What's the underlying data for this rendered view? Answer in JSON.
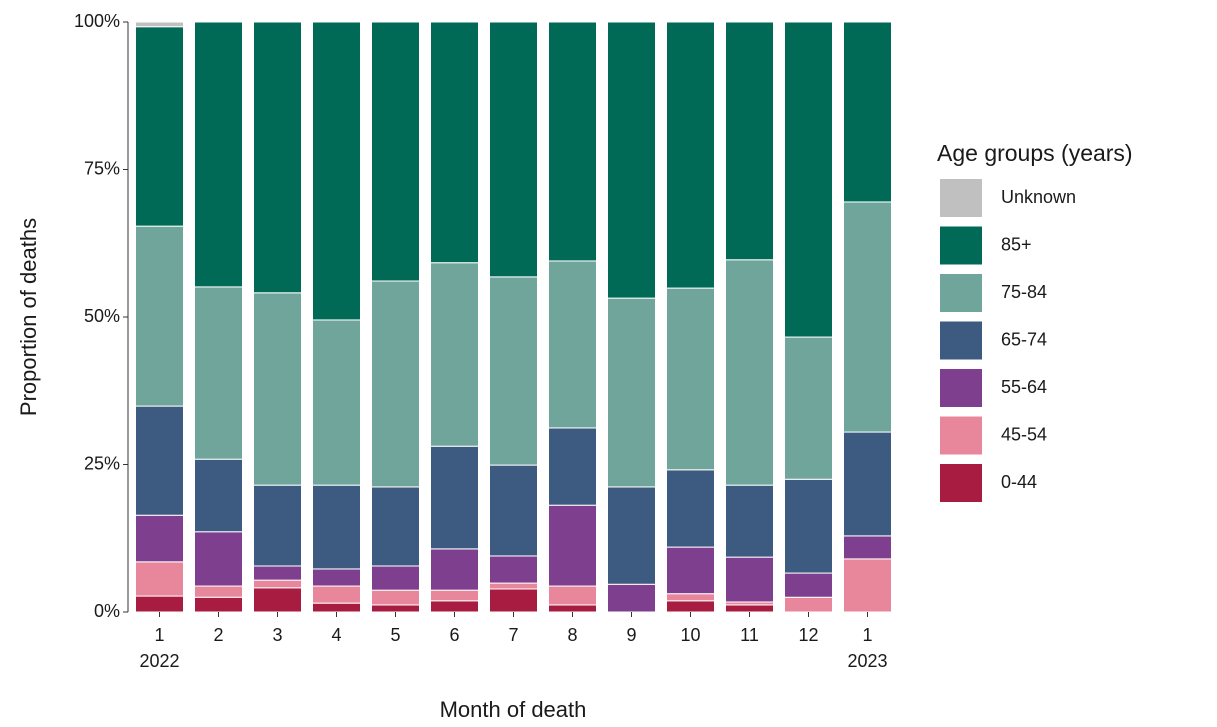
{
  "chart_data": {
    "type": "stacked_bar",
    "x_label": "Month of death",
    "y_label": "Proportion of deaths",
    "legend_title": "Age groups (years)",
    "legend": "right",
    "categories": [
      "1",
      "2",
      "3",
      "4",
      "5",
      "6",
      "7",
      "8",
      "9",
      "10",
      "11",
      "12",
      "1"
    ],
    "x_sublabels": [
      "2022",
      null,
      null,
      null,
      null,
      null,
      null,
      null,
      null,
      null,
      null,
      null,
      "2023"
    ],
    "ylim": [
      0,
      100
    ],
    "yticks": [
      {
        "value": 0,
        "label": "0%"
      },
      {
        "value": 25,
        "label": "25%"
      },
      {
        "value": 50,
        "label": "50%"
      },
      {
        "value": 75,
        "label": "75%"
      },
      {
        "value": 100,
        "label": "100%"
      }
    ],
    "series": [
      {
        "name": "0-44",
        "color": "#a81c42",
        "values": [
          2.7,
          2.5,
          4.1,
          1.5,
          1.2,
          1.9,
          3.9,
          1.2,
          0,
          1.9,
          1.2,
          0,
          0
        ]
      },
      {
        "name": "45-54",
        "color": "#e8879c",
        "values": [
          5.8,
          1.9,
          1.3,
          2.9,
          2.5,
          1.8,
          1,
          3.2,
          0,
          1.2,
          0.5,
          2.5,
          9
        ]
      },
      {
        "name": "55-64",
        "color": "#7e3f8f",
        "values": [
          7.9,
          9.2,
          2.4,
          2.9,
          4.1,
          7,
          4.6,
          13.7,
          4.7,
          7.9,
          7.6,
          4.1,
          3.9
        ]
      },
      {
        "name": "65-74",
        "color": "#3d5a80",
        "values": [
          18.5,
          12.3,
          13.7,
          14.2,
          13.4,
          17.4,
          15.4,
          13.1,
          16.5,
          13.1,
          12.2,
          15.9,
          17.6
        ]
      },
      {
        "name": "75-84",
        "color": "#70a59b",
        "values": [
          30.5,
          29.2,
          32.6,
          28,
          34.9,
          31.1,
          31.9,
          28.3,
          32,
          30.8,
          38.2,
          24.1,
          39
        ]
      },
      {
        "name": "85+",
        "color": "#006a56",
        "values": [
          33.8,
          44.9,
          45.9,
          50.5,
          43.9,
          40.8,
          43.2,
          40.5,
          46.8,
          45.1,
          40.3,
          53.4,
          30.5
        ]
      },
      {
        "name": "Unknown",
        "color": "#c0c0c0",
        "values": [
          0.8,
          0,
          0,
          0,
          0,
          0,
          0,
          0,
          0,
          0,
          0,
          0,
          0
        ]
      }
    ]
  }
}
